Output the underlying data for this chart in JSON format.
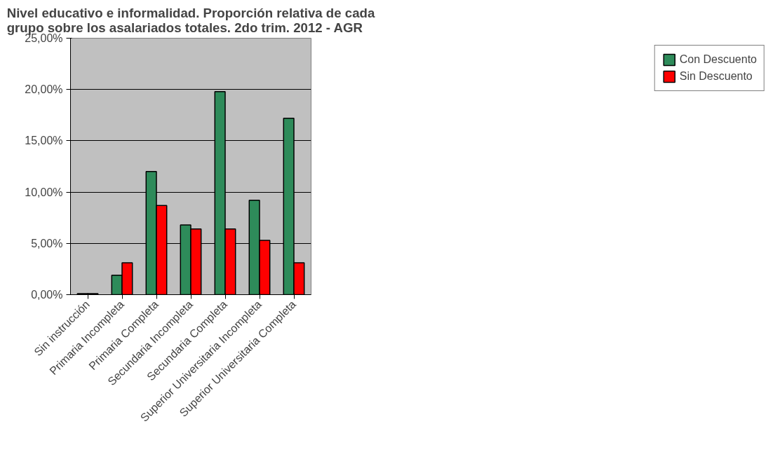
{
  "chart_data": {
    "type": "bar",
    "title": "Nivel educativo e informalidad. Proporción relativa de cada grupo sobre los asalariados totales. 2do trim. 2012 - AGR",
    "categories": [
      "Sin instrucción",
      "Primaria Incompleta",
      "Primaria Completa",
      "Secundaria Incompleta",
      "Secundaria Completa",
      "Superior Universitaria Incompleta",
      "Superior Universitaria Completa"
    ],
    "series": [
      {
        "name": "Con Descuento",
        "color": "#2e8b5a",
        "values": [
          0.1,
          1.9,
          12,
          6.8,
          19.8,
          9.2,
          17.2
        ]
      },
      {
        "name": "Sin Descuento",
        "color": "#ff0000",
        "values": [
          0.1,
          3.1,
          8.7,
          6.4,
          6.4,
          5.3,
          3.1
        ]
      }
    ],
    "ylim": [
      0,
      25
    ],
    "yticks": [
      {
        "value": 0,
        "label": "0,00%"
      },
      {
        "value": 5,
        "label": "5,00%"
      },
      {
        "value": 10,
        "label": "10,00%"
      },
      {
        "value": 15,
        "label": "15,00%"
      },
      {
        "value": 20,
        "label": "20,00%"
      },
      {
        "value": 25,
        "label": "25,00%"
      }
    ],
    "grid": "y",
    "legend": "right"
  }
}
